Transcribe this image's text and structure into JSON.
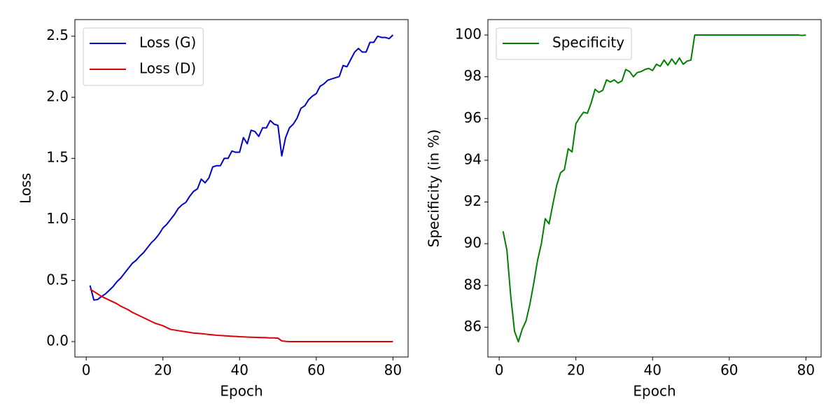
{
  "chart_data": [
    {
      "type": "line",
      "xlabel": "Epoch",
      "ylabel": "Loss",
      "x": [
        1,
        2,
        3,
        4,
        5,
        6,
        7,
        8,
        9,
        10,
        11,
        12,
        13,
        14,
        15,
        16,
        17,
        18,
        19,
        20,
        21,
        22,
        23,
        24,
        25,
        26,
        27,
        28,
        29,
        30,
        31,
        32,
        33,
        34,
        35,
        36,
        37,
        38,
        39,
        40,
        41,
        42,
        43,
        44,
        45,
        46,
        47,
        48,
        49,
        50,
        51,
        52,
        53,
        54,
        55,
        56,
        57,
        58,
        59,
        60,
        61,
        62,
        63,
        64,
        65,
        66,
        67,
        68,
        69,
        70,
        71,
        72,
        73,
        74,
        75,
        76,
        77,
        78,
        79,
        80
      ],
      "series": [
        {
          "name": "Loss (G)",
          "color": "#0000cc",
          "values": [
            0.46,
            0.34,
            0.345,
            0.37,
            0.39,
            0.42,
            0.45,
            0.49,
            0.52,
            0.56,
            0.6,
            0.64,
            0.665,
            0.7,
            0.73,
            0.77,
            0.81,
            0.84,
            0.88,
            0.93,
            0.96,
            1.0,
            1.04,
            1.09,
            1.12,
            1.14,
            1.19,
            1.23,
            1.25,
            1.33,
            1.3,
            1.34,
            1.43,
            1.44,
            1.44,
            1.5,
            1.5,
            1.56,
            1.55,
            1.55,
            1.67,
            1.62,
            1.73,
            1.72,
            1.68,
            1.75,
            1.75,
            1.81,
            1.78,
            1.77,
            1.52,
            1.67,
            1.75,
            1.78,
            1.83,
            1.91,
            1.93,
            1.98,
            2.01,
            2.03,
            2.09,
            2.11,
            2.14,
            2.15,
            2.16,
            2.17,
            2.26,
            2.25,
            2.31,
            2.37,
            2.4,
            2.37,
            2.37,
            2.45,
            2.45,
            2.5,
            2.49,
            2.49,
            2.48,
            2.51
          ]
        },
        {
          "name": "Loss (D)",
          "color": "#dd0000",
          "values": [
            0.43,
            0.41,
            0.39,
            0.37,
            0.355,
            0.34,
            0.325,
            0.31,
            0.29,
            0.275,
            0.26,
            0.24,
            0.225,
            0.21,
            0.195,
            0.18,
            0.165,
            0.15,
            0.14,
            0.13,
            0.115,
            0.1,
            0.095,
            0.09,
            0.085,
            0.08,
            0.075,
            0.07,
            0.068,
            0.065,
            0.062,
            0.058,
            0.055,
            0.052,
            0.05,
            0.048,
            0.046,
            0.044,
            0.042,
            0.04,
            0.039,
            0.037,
            0.036,
            0.035,
            0.034,
            0.033,
            0.032,
            0.03,
            0.03,
            0.028,
            0.006,
            0.002,
            0,
            0,
            0,
            0,
            0,
            0,
            0,
            0,
            0,
            0,
            0,
            0,
            0,
            0,
            0,
            0,
            0,
            0,
            0,
            0,
            0,
            0,
            0,
            0,
            0,
            0,
            0,
            0
          ]
        }
      ],
      "xlim": [
        -2.95,
        83.95
      ],
      "xticks": [
        0,
        20,
        40,
        60,
        80
      ],
      "ylim": [
        -0.126,
        2.636
      ],
      "yticks": [
        {
          "value": 0,
          "label": "0.0"
        },
        0.5,
        {
          "value": 1,
          "label": "1.0"
        },
        1.5,
        {
          "value": 2,
          "label": "2.0"
        },
        2.5
      ],
      "legend": "upper left"
    },
    {
      "type": "line",
      "xlabel": "Epoch",
      "ylabel": "Specificity (in %)",
      "x": [
        1,
        2,
        3,
        4,
        5,
        6,
        7,
        8,
        9,
        10,
        11,
        12,
        13,
        14,
        15,
        16,
        17,
        18,
        19,
        20,
        21,
        22,
        23,
        24,
        25,
        26,
        27,
        28,
        29,
        30,
        31,
        32,
        33,
        34,
        35,
        36,
        37,
        38,
        39,
        40,
        41,
        42,
        43,
        44,
        45,
        46,
        47,
        48,
        49,
        50,
        51,
        52,
        53,
        54,
        55,
        56,
        57,
        58,
        59,
        60,
        61,
        62,
        63,
        64,
        65,
        66,
        67,
        68,
        69,
        70,
        71,
        72,
        73,
        74,
        75,
        76,
        77,
        78,
        79,
        80
      ],
      "series": [
        {
          "name": "Specificity",
          "color": "#008000",
          "values": [
            90.6,
            89.7,
            87.5,
            85.8,
            85.3,
            85.9,
            86.3,
            87.1,
            88.1,
            89.2,
            90.0,
            91.2,
            90.95,
            91.9,
            92.8,
            93.4,
            93.55,
            94.55,
            94.4,
            95.75,
            96.05,
            96.3,
            96.25,
            96.75,
            97.4,
            97.25,
            97.35,
            97.85,
            97.75,
            97.85,
            97.7,
            97.8,
            98.35,
            98.25,
            98.0,
            98.2,
            98.25,
            98.35,
            98.4,
            98.3,
            98.6,
            98.5,
            98.8,
            98.55,
            98.85,
            98.6,
            98.9,
            98.6,
            98.75,
            98.8,
            100,
            100,
            100,
            100,
            100,
            100,
            100,
            100,
            100,
            100,
            100,
            100,
            100,
            100,
            100,
            100,
            100,
            100,
            100,
            100,
            100,
            100,
            100,
            100,
            100,
            100,
            100,
            100,
            99.98,
            100
          ]
        }
      ],
      "xlim": [
        -2.95,
        83.95
      ],
      "xticks": [
        0,
        20,
        40,
        60,
        80
      ],
      "ylim": [
        84.57,
        100.74
      ],
      "yticks": [
        86,
        88,
        90,
        92,
        94,
        96,
        98,
        100
      ],
      "legend": "upper left"
    }
  ]
}
